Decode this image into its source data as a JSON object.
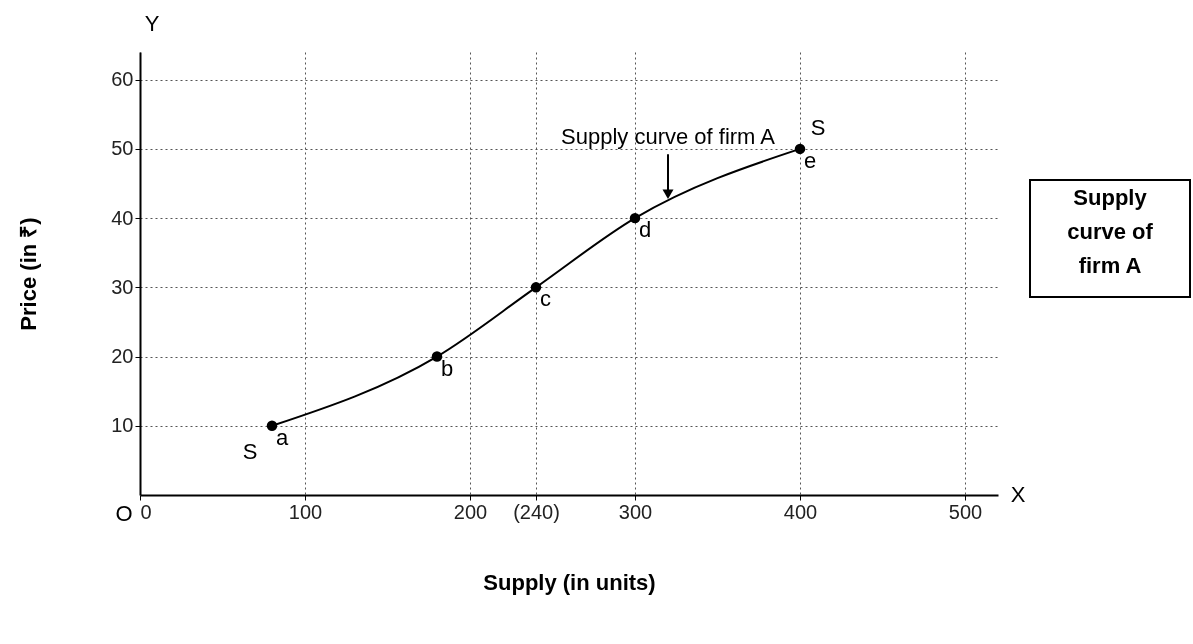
{
  "chart_data": {
    "type": "line",
    "xlabel": "Supply (in units)",
    "ylabel": "Price (in ₹)",
    "x": [
      80,
      180,
      240,
      300,
      400
    ],
    "series": [
      {
        "color": "#000000",
        "values": [
          10,
          20,
          30,
          40,
          50
        ]
      }
    ],
    "xlim": [
      0,
      520
    ],
    "ylim": [
      0,
      64
    ],
    "xticks": [
      0,
      100,
      200,
      {
        "value": 240,
        "label": "(240)"
      },
      300,
      400,
      500
    ],
    "yticks": [
      10,
      20,
      30,
      40,
      50,
      60
    ],
    "grid": true,
    "marker": "circle",
    "line_style": "solid",
    "legend": false,
    "annotations": [
      {
        "text": "a",
        "x": 80,
        "y": 10
      },
      {
        "text": "b",
        "x": 180,
        "y": 20
      },
      {
        "text": "c",
        "x": 240,
        "y": 30
      },
      {
        "text": "d",
        "x": 300,
        "y": 40
      },
      {
        "text": "e",
        "x": 400,
        "y": 50
      },
      {
        "text": "Supply curve of firm A",
        "x": 320,
        "y": 42
      },
      "S",
      "S",
      "O",
      "Y",
      "X",
      "Supply curve of firm A"
    ]
  }
}
